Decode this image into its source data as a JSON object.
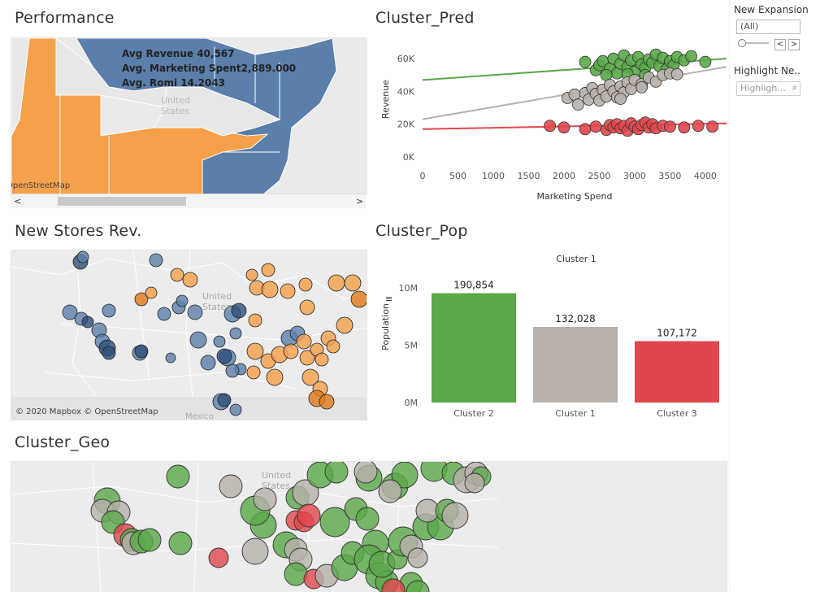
{
  "panels": {
    "performance": {
      "title": "Performance"
    },
    "cluster_pred": {
      "title": "Cluster_Pred"
    },
    "new_stores": {
      "title": "New Stores Rev."
    },
    "cluster_pop": {
      "title": "Cluster_Pop"
    },
    "cluster_geo": {
      "title": "Cluster_Geo"
    }
  },
  "performance_map": {
    "tooltip": [
      "Avg Revenue 40,567",
      "Avg. Marketing Spent2,889.000",
      "Avg. Romi 14.2043"
    ],
    "map_label": "United States",
    "attribution": "OpenStreetMap",
    "colors": {
      "west": "#f5a04a",
      "east": "#5b7fab",
      "neutral": "#e8e8e8"
    }
  },
  "new_stores_map": {
    "map_label": "United States",
    "mexico_label": "Mexico",
    "attribution": "© 2020 Mapbox © OpenStreetMap"
  },
  "cluster_geo_map": {
    "map_label": "United States"
  },
  "sidebar": {
    "filter_label": "New Expansion",
    "filter_value": "(All)",
    "prev_glyph": "<",
    "next_glyph": ">",
    "highlight_label": "Highlight Ne..",
    "highlight_placeholder": "Highligh...",
    "search_glyph": "⌕"
  },
  "chart_data": [
    {
      "type": "scatter",
      "title": "",
      "xlabel": "Marketing Spend",
      "ylabel": "Revenue",
      "xlim": [
        0,
        4300
      ],
      "ylim": [
        0,
        70000
      ],
      "xticks": [
        0,
        500,
        1000,
        1500,
        2000,
        2500,
        3000,
        3500,
        4000
      ],
      "xtick_labels": [
        "0",
        "500",
        "1000",
        "1500",
        "2000",
        "2500",
        "3000",
        "3500",
        "4000"
      ],
      "yticks": [
        0,
        20000,
        40000,
        60000
      ],
      "ytick_labels": [
        "0K",
        "20K",
        "40K",
        "60K"
      ],
      "series": [
        {
          "color": "#5aa849",
          "trend": [
            [
              0,
              47000
            ],
            [
              4300,
              60000
            ]
          ],
          "points": [
            [
              2300,
              58000
            ],
            [
              2450,
              53000
            ],
            [
              2500,
              56000
            ],
            [
              2550,
              58500
            ],
            [
              2650,
              54000
            ],
            [
              2700,
              60000
            ],
            [
              2750,
              51000
            ],
            [
              2800,
              57000
            ],
            [
              2850,
              62000
            ],
            [
              2900,
              55000
            ],
            [
              2950,
              59000
            ],
            [
              3000,
              52000
            ],
            [
              3050,
              61000
            ],
            [
              3100,
              56500
            ],
            [
              3150,
              54500
            ],
            [
              3200,
              59500
            ],
            [
              3250,
              57500
            ],
            [
              3300,
              62500
            ],
            [
              3350,
              55500
            ],
            [
              3400,
              60500
            ],
            [
              3450,
              53500
            ],
            [
              3500,
              58500
            ],
            [
              3550,
              56000
            ],
            [
              3600,
              61000
            ],
            [
              3700,
              59000
            ],
            [
              3800,
              61500
            ],
            [
              4000,
              58000
            ],
            [
              2600,
              50000
            ],
            [
              2900,
              50500
            ],
            [
              3150,
              50000
            ]
          ]
        },
        {
          "color": "#b8b0aa",
          "trend": [
            [
              0,
              23000
            ],
            [
              4300,
              55000
            ]
          ],
          "points": [
            [
              2050,
              36000
            ],
            [
              2150,
              38000
            ],
            [
              2200,
              32000
            ],
            [
              2300,
              39000
            ],
            [
              2350,
              35000
            ],
            [
              2400,
              42000
            ],
            [
              2450,
              38500
            ],
            [
              2500,
              34500
            ],
            [
              2550,
              41000
            ],
            [
              2600,
              37000
            ],
            [
              2650,
              44000
            ],
            [
              2700,
              40000
            ],
            [
              2750,
              36500
            ],
            [
              2800,
              43000
            ],
            [
              2850,
              39500
            ],
            [
              2900,
              45500
            ],
            [
              2950,
              41500
            ],
            [
              3000,
              47000
            ],
            [
              3100,
              44500
            ],
            [
              3200,
              48500
            ],
            [
              3300,
              46000
            ],
            [
              3400,
              50000
            ],
            [
              3500,
              51000
            ],
            [
              3600,
              50500
            ],
            [
              3100,
              42500
            ],
            [
              2800,
              35500
            ]
          ]
        },
        {
          "color": "#e0474c",
          "trend": [
            [
              0,
              17000
            ],
            [
              4300,
              20500
            ]
          ],
          "points": [
            [
              1800,
              19000
            ],
            [
              2000,
              18000
            ],
            [
              2300,
              17000
            ],
            [
              2450,
              18500
            ],
            [
              2600,
              16500
            ],
            [
              2650,
              19500
            ],
            [
              2700,
              18000
            ],
            [
              2750,
              20000
            ],
            [
              2800,
              17500
            ],
            [
              2850,
              19000
            ],
            [
              2900,
              16000
            ],
            [
              2950,
              20500
            ],
            [
              3000,
              18500
            ],
            [
              3050,
              17000
            ],
            [
              3100,
              19500
            ],
            [
              3150,
              21000
            ],
            [
              3200,
              18000
            ],
            [
              3250,
              20000
            ],
            [
              3300,
              17500
            ],
            [
              3400,
              19000
            ],
            [
              3500,
              18500
            ],
            [
              3700,
              18000
            ],
            [
              3900,
              19000
            ],
            [
              4100,
              18500
            ]
          ]
        }
      ]
    },
    {
      "type": "bar",
      "title": "Cluster 1",
      "ylabel": "Population",
      "ylim": [
        0,
        11500
      ],
      "yticks": [
        0,
        5000,
        10000
      ],
      "ytick_labels": [
        "0M",
        "5M",
        "10M"
      ],
      "categories": [
        "Cluster 2",
        "Cluster 1",
        "Cluster 3"
      ],
      "values": [
        190854,
        132028,
        107172
      ],
      "value_labels": [
        "190,854",
        "132,028",
        "107,172"
      ],
      "colors": [
        "#5aa849",
        "#b8b0aa",
        "#e0474c"
      ]
    }
  ]
}
